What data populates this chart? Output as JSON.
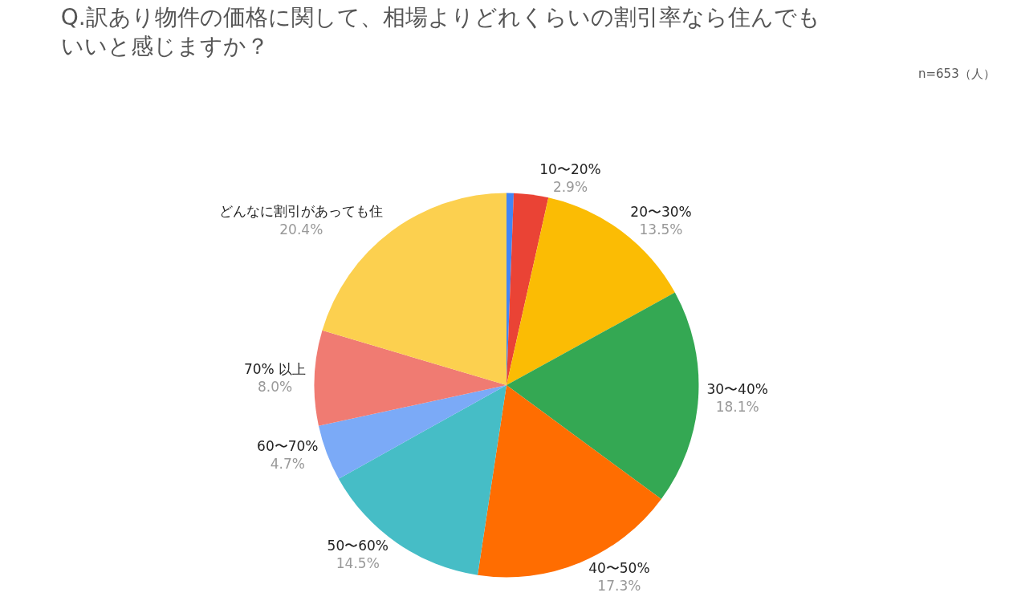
{
  "chart_data": {
    "type": "pie",
    "title": "Q.訳あり物件の価格に関して、相場よりどれくらいの割引率なら住んでもいいと感じますか？",
    "subtitle": "n=653（人）",
    "categories": [
      null,
      "10〜20%",
      "20〜30%",
      "30〜40%",
      "40〜50%",
      "50〜60%",
      "60〜70%",
      "70% 以上",
      "どんなに割引があっても住"
    ],
    "values": [
      0.6,
      2.9,
      13.5,
      18.1,
      17.3,
      14.5,
      4.7,
      8.0,
      20.4
    ],
    "value_labels": [
      null,
      "2.9%",
      "13.5%",
      "18.1%",
      "17.3%",
      "14.5%",
      "4.7%",
      "8.0%",
      "20.4%"
    ],
    "colors": [
      "#4285f4",
      "#ea4335",
      "#fbbc04",
      "#34a853",
      "#ff6d01",
      "#46bdc6",
      "#7baaf7",
      "#f07b72",
      "#fcd04f"
    ],
    "legend": false
  }
}
